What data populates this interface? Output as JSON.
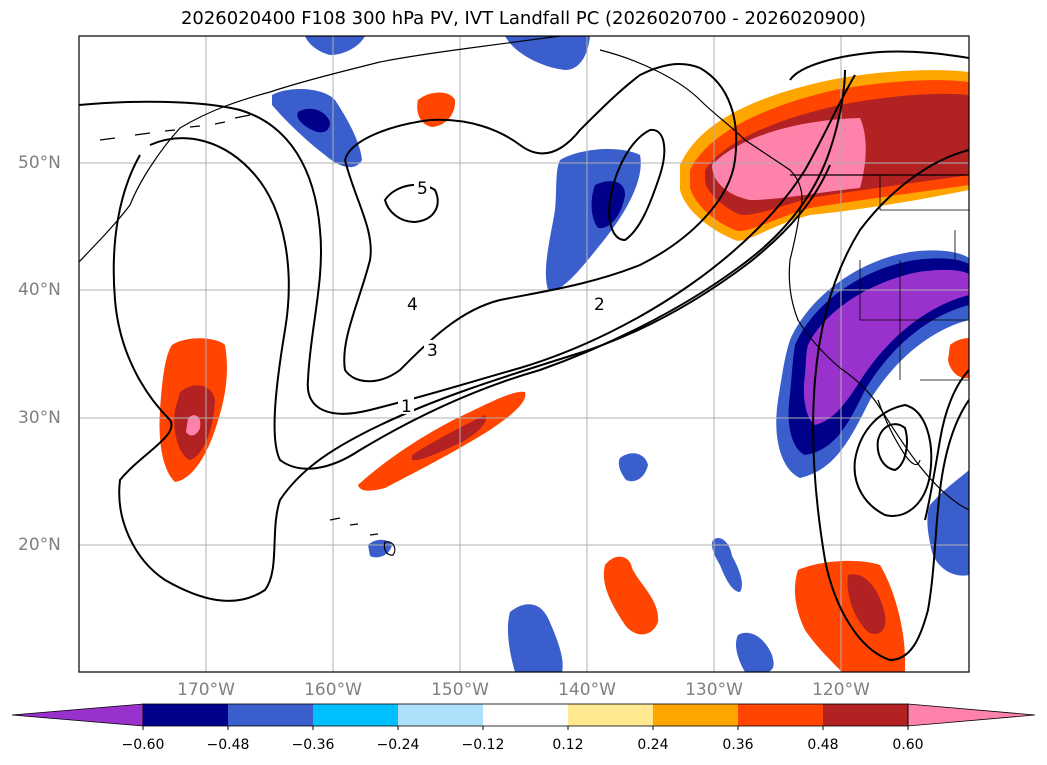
{
  "title": "2026020400 F108 300 hPa PV, IVT Landfall PC (2026020700 - 2026020900)",
  "lon_labels": [
    "170°W",
    "160°W",
    "150°W",
    "140°W",
    "130°W",
    "120°W"
  ],
  "lat_labels": [
    "50°N",
    "40°N",
    "30°N",
    "20°N"
  ],
  "contour_labels": [
    "1",
    "2",
    "3",
    "4",
    "5"
  ],
  "colorbar": {
    "ticks": [
      "−0.60",
      "−0.48",
      "−0.36",
      "−0.24",
      "−0.12",
      "0.12",
      "0.24",
      "0.36",
      "0.48",
      "0.60"
    ],
    "colors": [
      "#9932CC",
      "#00008B",
      "#3A5FCD",
      "#00BFFF",
      "#ADE0FA",
      "#FFFFFF",
      "#FFE890",
      "#FFA500",
      "#FF4500",
      "#B22222",
      "#FF82AB"
    ]
  }
}
